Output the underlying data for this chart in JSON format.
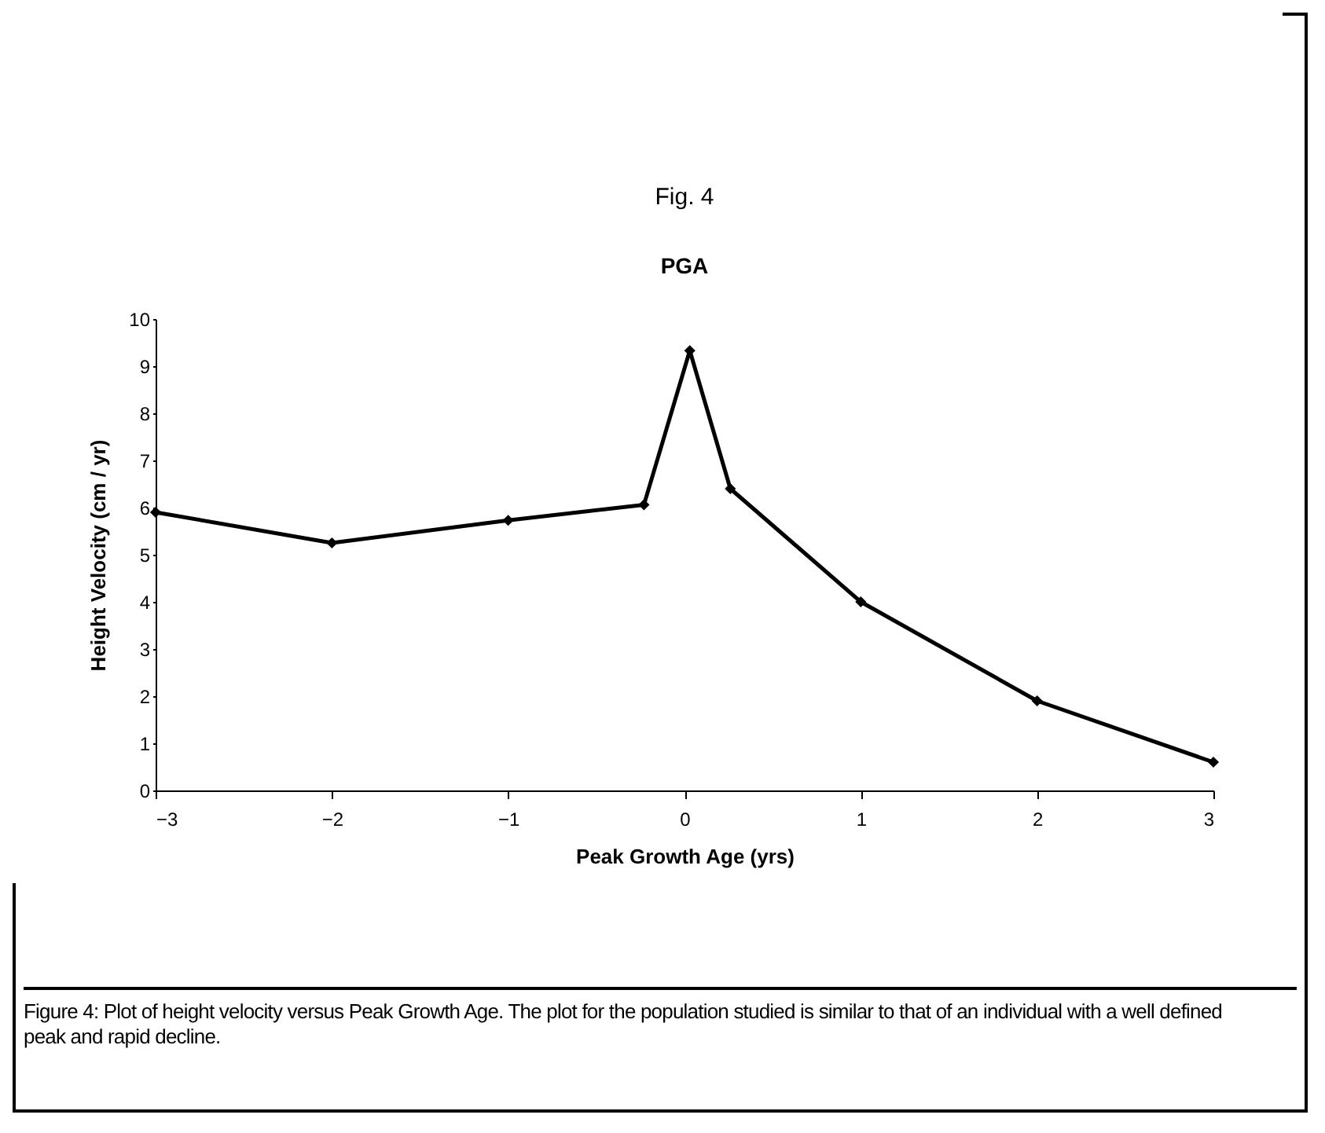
{
  "chart_data": {
    "type": "line",
    "title": "Fig. 4",
    "subtitle": "PGA",
    "xlabel": "Peak Growth Age (yrs)",
    "ylabel": "Height Velocity (cm / yr)",
    "x": [
      -3,
      -2,
      -1,
      -0.23,
      0.03,
      0.26,
      1,
      2,
      3
    ],
    "series": [
      {
        "color": "#000000",
        "values": [
          5.9,
          5.25,
          5.73,
          6.06,
          9.33,
          6.4,
          4.0,
          1.9,
          0.6
        ]
      }
    ],
    "xlim": [
      -3,
      3
    ],
    "xticks": [
      -3,
      -2,
      -1,
      0,
      1,
      2,
      3
    ],
    "ylim": [
      0,
      10
    ],
    "yticks": [
      0,
      1,
      2,
      3,
      4,
      5,
      6,
      7,
      8,
      9,
      10
    ],
    "marker": "diamond",
    "line_style": "solid",
    "annotations": [
      "Figure 4: Plot of height velocity versus Peak Growth Age.  The plot for the population studied is similar to that of an individual with a well defined peak and rapid decline."
    ]
  }
}
